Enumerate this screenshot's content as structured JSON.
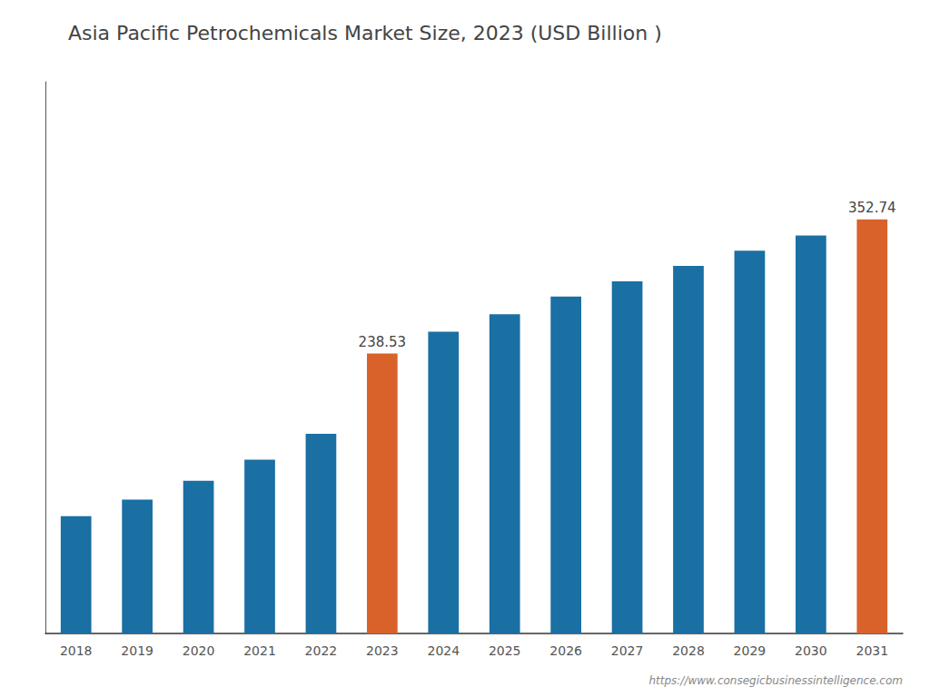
{
  "chart_data": {
    "type": "bar",
    "title": "Asia Pacific Petrochemicals Market Size, 2023 (USD Billion )",
    "categories": [
      "2018",
      "2019",
      "2020",
      "2021",
      "2022",
      "2023",
      "2024",
      "2025",
      "2026",
      "2027",
      "2028",
      "2029",
      "2030",
      "2031"
    ],
    "values": [
      100.0,
      114.0,
      130.0,
      148.0,
      170.0,
      238.53,
      257.0,
      272.0,
      287.0,
      300.0,
      313.0,
      326.0,
      339.0,
      352.74
    ],
    "value_labels": [
      null,
      null,
      null,
      null,
      null,
      "238.53",
      null,
      null,
      null,
      null,
      null,
      null,
      null,
      "352.74"
    ],
    "colors": [
      "#1a6fa3",
      "#1a6fa3",
      "#1a6fa3",
      "#1a6fa3",
      "#1a6fa3",
      "#d9622b",
      "#1a6fa3",
      "#1a6fa3",
      "#1a6fa3",
      "#1a6fa3",
      "#1a6fa3",
      "#1a6fa3",
      "#1a6fa3",
      "#d9622b"
    ],
    "ylim": [
      0,
      470
    ],
    "grid": false,
    "tick_labels": "x",
    "annotations": [
      "https://www.consegicbusinessintelligence.com"
    ]
  }
}
